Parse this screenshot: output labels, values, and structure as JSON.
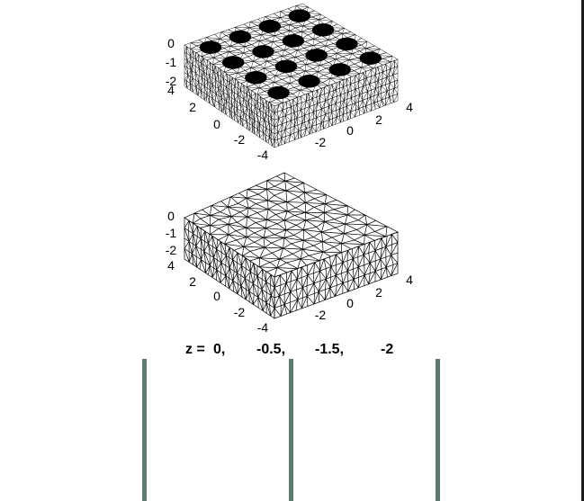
{
  "meshes": [
    {
      "style": "dense",
      "z_ticks": [
        "0",
        "-1",
        "-2"
      ],
      "y_ticks": [
        "4",
        "2",
        "0",
        "-2",
        "-4"
      ],
      "x_ticks": [
        "-2",
        "0",
        "2",
        "4"
      ],
      "hole_grid": 4
    },
    {
      "style": "coarse",
      "z_ticks": [
        "0",
        "-1",
        "-2"
      ],
      "y_ticks": [
        "4",
        "2",
        "0",
        "-2",
        "-4"
      ],
      "x_ticks": [
        "-2",
        "0",
        "2",
        "4"
      ],
      "hole_grid": 0
    }
  ],
  "slice_caption": {
    "prefix": "z = ",
    "values": [
      "0,",
      "-0.5,",
      "-1.5,",
      "-2"
    ]
  },
  "colors": {
    "mesh": "#000000",
    "slice_bar": "#5e7a6c"
  }
}
